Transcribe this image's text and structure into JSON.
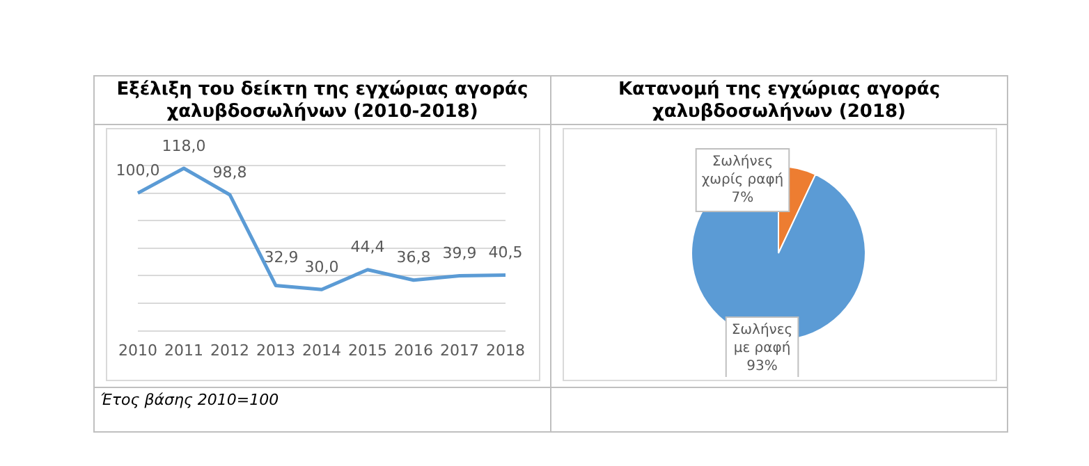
{
  "chart_data": [
    {
      "type": "line",
      "title": "Εξέλιξη του δείκτη της εγχώριας αγοράς χαλυβδοσωλήνων (2010-2018)",
      "categories": [
        "2010",
        "2011",
        "2012",
        "2013",
        "2014",
        "2015",
        "2016",
        "2017",
        "2018"
      ],
      "values": [
        100.0,
        118.0,
        98.8,
        32.9,
        30.0,
        44.4,
        36.8,
        39.9,
        40.5
      ],
      "value_labels": [
        "100,0",
        "118,0",
        "98,8",
        "32,9",
        "30,0",
        "44,4",
        "36,8",
        "39,9",
        "40,5"
      ],
      "color": "#5b9bd5",
      "marker": "none",
      "grid": "y",
      "tick_labels": "x",
      "annotations": [
        "Έτος βάσης 2010=100"
      ]
    },
    {
      "type": "pie",
      "title": "Κατανομή της εγχώριας αγοράς χαλυβδοσωλήνων (2018)",
      "categories": [
        "Σωλήνες χωρίς ραφή",
        "Σωλήνες με ραφή"
      ],
      "values": [
        7,
        93
      ],
      "value_labels": [
        "7%",
        "93%"
      ],
      "colors": [
        "#ed7d31",
        "#5b9bd5"
      ]
    }
  ]
}
